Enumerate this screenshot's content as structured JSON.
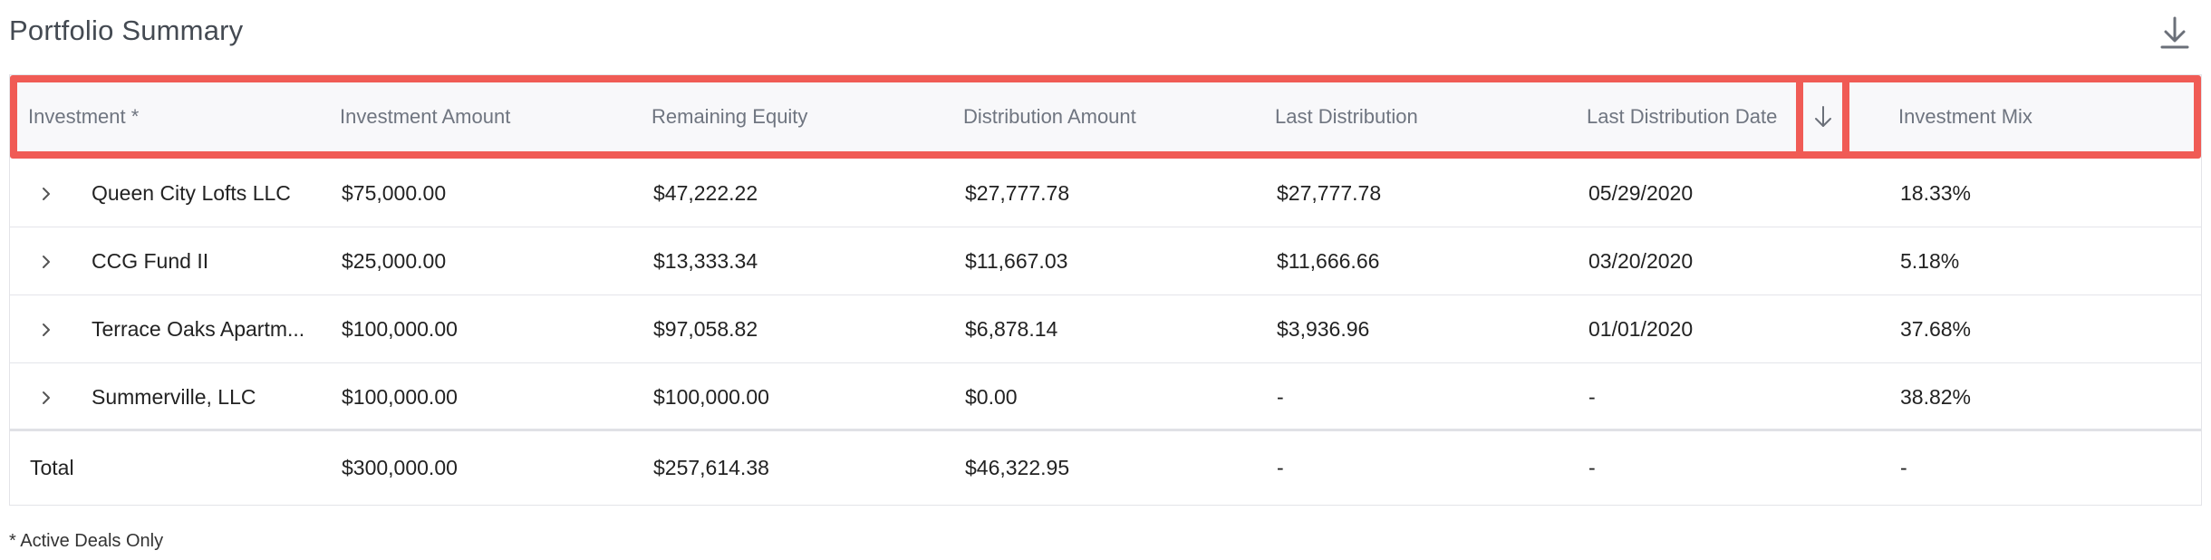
{
  "title": "Portfolio Summary",
  "download_icon": "download-icon",
  "sort_icon": "arrow-down-icon",
  "expand_icon": "chevron-right-icon",
  "highlight_color": "#f05b55",
  "columns": [
    "Investment *",
    "Investment Amount",
    "Remaining Equity",
    "Distribution Amount",
    "Last Distribution",
    "Last Distribution Date",
    "Investment Mix"
  ],
  "rows": [
    [
      "Queen City Lofts LLC",
      "$75,000.00",
      "$47,222.22",
      "$27,777.78",
      "$27,777.78",
      "05/29/2020",
      "18.33%"
    ],
    [
      "CCG Fund II",
      "$25,000.00",
      "$13,333.34",
      "$11,667.03",
      "$11,666.66",
      "03/20/2020",
      "5.18%"
    ],
    [
      "Terrace Oaks Apartm...",
      "$100,000.00",
      "$97,058.82",
      "$6,878.14",
      "$3,936.96",
      "01/01/2020",
      "37.68%"
    ],
    [
      "Summerville, LLC",
      "$100,000.00",
      "$100,000.00",
      "$0.00",
      "-",
      "-",
      "38.82%"
    ]
  ],
  "total": [
    "Total",
    "$300,000.00",
    "$257,614.38",
    "$46,322.95",
    "-",
    "-",
    "-"
  ],
  "footnote": "* Active Deals Only"
}
